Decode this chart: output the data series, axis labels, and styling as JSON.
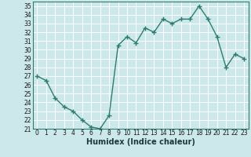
{
  "x": [
    0,
    1,
    2,
    3,
    4,
    5,
    6,
    7,
    8,
    9,
    10,
    11,
    12,
    13,
    14,
    15,
    16,
    17,
    18,
    19,
    20,
    21,
    22,
    23
  ],
  "y": [
    27.0,
    26.5,
    24.5,
    23.5,
    23.0,
    22.0,
    21.2,
    21.0,
    22.5,
    30.5,
    31.5,
    30.8,
    32.5,
    32.0,
    33.5,
    33.0,
    33.5,
    33.5,
    35.0,
    33.5,
    31.5,
    28.0,
    29.5,
    29.0
  ],
  "line_color": "#2e7d6e",
  "marker": "+",
  "marker_size": 4,
  "bg_color": "#cce8ea",
  "grid_color": "#ffffff",
  "xlabel": "Humidex (Indice chaleur)",
  "xlim": [
    -0.5,
    23.5
  ],
  "ylim": [
    21,
    35.5
  ],
  "yticks": [
    21,
    22,
    23,
    24,
    25,
    26,
    27,
    28,
    29,
    30,
    31,
    32,
    33,
    34,
    35
  ],
  "xticks": [
    0,
    1,
    2,
    3,
    4,
    5,
    6,
    7,
    8,
    9,
    10,
    11,
    12,
    13,
    14,
    15,
    16,
    17,
    18,
    19,
    20,
    21,
    22,
    23
  ],
  "tick_fontsize": 5.5,
  "xlabel_fontsize": 7.0,
  "line_width": 1.0,
  "spine_color": "#2e7d6e"
}
